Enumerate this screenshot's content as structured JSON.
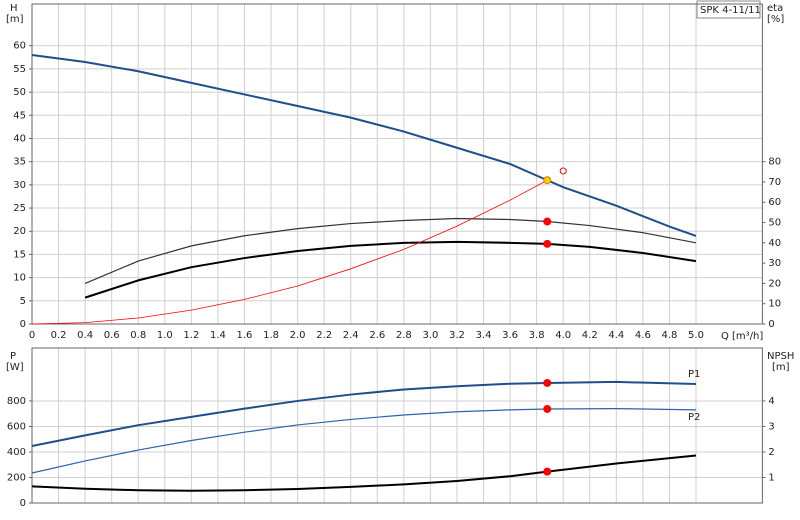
{
  "chart_data": [
    {
      "type": "line",
      "title": "SPK 4-11/11",
      "y_label": "H",
      "y_unit": "[m]",
      "y2_label": "eta",
      "y2_unit": "[%]",
      "x_label": "Q",
      "x_unit": "[m³/h]",
      "xlim": [
        0,
        5.5
      ],
      "ylim": [
        0,
        69
      ],
      "y2lim": [
        0,
        157.7
      ],
      "grid": true,
      "xticks": [
        0,
        0.2,
        0.4,
        0.6,
        0.8,
        {
          "value": 1,
          "label": "1.0"
        },
        1.2,
        1.4,
        1.6,
        1.8,
        {
          "value": 2,
          "label": "2.0"
        },
        2.2,
        2.4,
        2.6,
        2.8,
        {
          "value": 3,
          "label": "3.0"
        },
        3.2,
        3.4,
        3.6,
        3.8,
        {
          "value": 4,
          "label": "4.0"
        },
        4.2,
        4.4,
        4.6,
        4.8,
        {
          "value": 5,
          "label": "5.0"
        }
      ],
      "yticks": [
        0,
        5,
        10,
        15,
        20,
        25,
        30,
        35,
        40,
        45,
        50,
        55,
        60
      ],
      "y2ticks": [
        0,
        10,
        20,
        30,
        40,
        50,
        60,
        70,
        80
      ],
      "series": [
        {
          "color": "#1f4e8c",
          "width": 2,
          "x": [
            0,
            0.4,
            0.8,
            1.2,
            1.6,
            2.0,
            2.4,
            2.8,
            3.2,
            3.6,
            3.88,
            4.0,
            4.4,
            4.8,
            5.0
          ],
          "values": [
            58,
            56.5,
            54.5,
            52,
            49.5,
            47,
            44.5,
            41.5,
            38,
            34.5,
            31,
            29.5,
            25.5,
            21,
            19
          ]
        },
        {
          "color": "#333333",
          "width": 1.2,
          "axis": "y2",
          "x": [
            0.4,
            0.8,
            1.2,
            1.6,
            2.0,
            2.4,
            2.8,
            3.2,
            3.6,
            3.88,
            4.2,
            4.6,
            5.0
          ],
          "values": [
            20,
            31,
            38.5,
            43.5,
            47,
            49.5,
            51,
            52,
            51.5,
            50.5,
            48.5,
            45,
            40
          ]
        },
        {
          "color": "#000000",
          "width": 2,
          "axis": "y2",
          "x": [
            0.4,
            0.8,
            1.2,
            1.6,
            2.0,
            2.4,
            2.8,
            3.2,
            3.6,
            3.88,
            4.2,
            4.6,
            5.0
          ],
          "values": [
            13,
            21.5,
            28,
            32.5,
            36,
            38.5,
            40,
            40.5,
            40,
            39.5,
            38,
            35,
            31
          ]
        },
        {
          "color": "#ff0000",
          "width": 0.8,
          "x": [
            0,
            0.4,
            0.8,
            1.2,
            1.6,
            2.0,
            2.4,
            2.8,
            3.2,
            3.6,
            3.88
          ],
          "values": [
            0,
            0.3,
            1.3,
            3.0,
            5.3,
            8.2,
            11.9,
            16.1,
            21.1,
            26.7,
            31
          ]
        }
      ],
      "points": [
        {
          "x": 3.88,
          "y": 31,
          "color": "#ffcc00"
        },
        {
          "x": 3.88,
          "y": 50.5,
          "color": "#ff0000",
          "axis": "y2"
        },
        {
          "x": 3.88,
          "y": 39.5,
          "color": "#ff0000",
          "axis": "y2"
        },
        {
          "x": 4.0,
          "y": 33,
          "color": "#ff0000",
          "open": true
        }
      ]
    },
    {
      "type": "line",
      "y_label": "P",
      "y_unit": "[W]",
      "y2_label": "NPSH",
      "y2_unit": "[m]",
      "xlim": [
        0,
        5.5
      ],
      "ylim": [
        0,
        1215
      ],
      "y2lim": [
        0,
        6.075
      ],
      "grid": true,
      "yticks": [
        0,
        200,
        400,
        600,
        800
      ],
      "y2ticks": [
        1,
        2,
        3,
        4
      ],
      "series": [
        {
          "name": "P1",
          "color": "#1f4e8c",
          "width": 2,
          "x": [
            0,
            0.4,
            0.8,
            1.2,
            1.6,
            2.0,
            2.4,
            2.8,
            3.2,
            3.6,
            3.88,
            4.4,
            5.0
          ],
          "values": [
            447,
            530,
            610,
            675,
            740,
            800,
            850,
            890,
            915,
            935,
            941,
            949,
            933
          ]
        },
        {
          "name": "P2",
          "color": "#2c64a8",
          "width": 1.2,
          "x": [
            0,
            0.4,
            0.8,
            1.2,
            1.6,
            2.0,
            2.4,
            2.8,
            3.2,
            3.6,
            3.88,
            4.4,
            5.0
          ],
          "values": [
            235,
            330,
            415,
            490,
            555,
            612,
            655,
            690,
            715,
            730,
            737,
            740,
            730
          ]
        },
        {
          "color": "#000000",
          "width": 2,
          "axis": "y2",
          "x": [
            0,
            0.4,
            0.8,
            1.2,
            1.6,
            2.0,
            2.4,
            2.8,
            3.2,
            3.6,
            3.88,
            4.4,
            5.0
          ],
          "values": [
            0.65,
            0.56,
            0.5,
            0.48,
            0.5,
            0.55,
            0.63,
            0.73,
            0.86,
            1.05,
            1.23,
            1.55,
            1.86
          ]
        }
      ],
      "points": [
        {
          "x": 3.88,
          "y": 941,
          "color": "#ff0000"
        },
        {
          "x": 3.88,
          "y": 737,
          "color": "#ff0000"
        },
        {
          "x": 3.88,
          "y": 1.23,
          "color": "#ff0000",
          "axis": "y2"
        }
      ]
    }
  ]
}
